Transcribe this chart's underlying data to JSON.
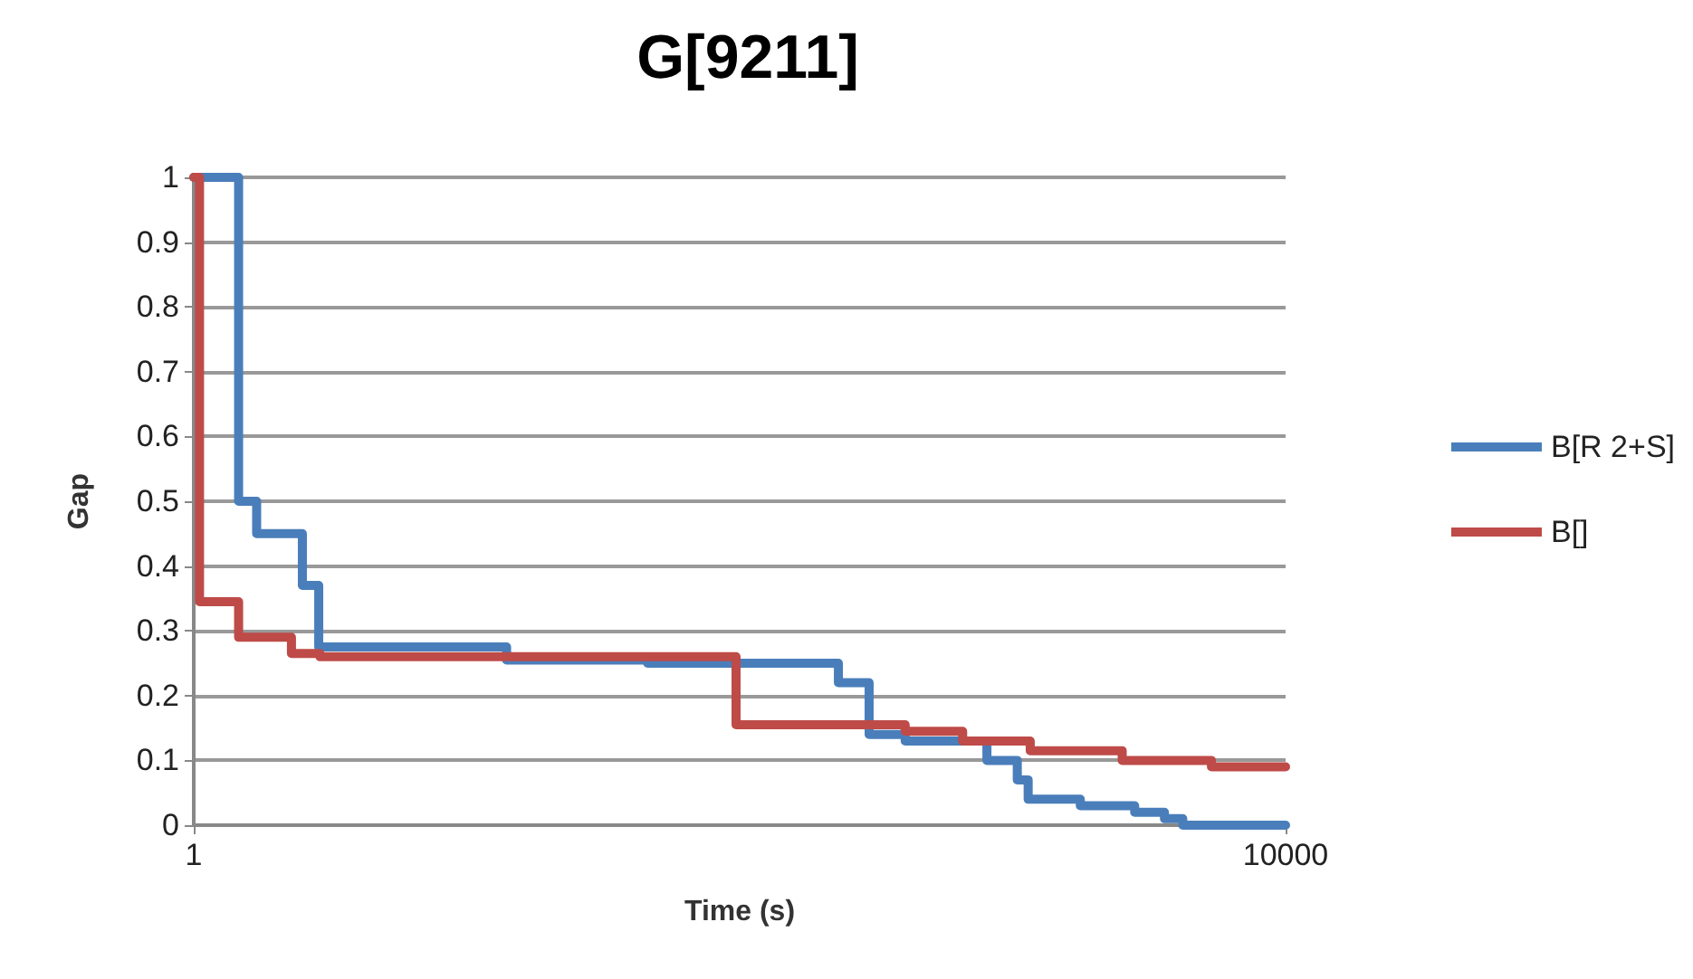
{
  "chart_data": {
    "type": "step",
    "title": "G[9211]",
    "xlabel": "Time (s)",
    "ylabel": "Gap",
    "log": "x",
    "xlim": [
      1,
      10000
    ],
    "xticks": [
      1,
      10000
    ],
    "ylim": [
      0,
      1
    ],
    "yticks": [
      0,
      0.1,
      0.2,
      0.3,
      0.4,
      0.5,
      0.6,
      0.7,
      0.8,
      0.9,
      1
    ],
    "grid": "y",
    "legend": "right",
    "marker": "none",
    "line_style": "solid",
    "series": [
      {
        "name": "B[R 2+S]",
        "color": "#4a7ebb",
        "x": [
          1,
          1.46,
          1.7,
          2.5,
          2.87,
          14,
          46,
          230,
          298,
          404,
          805,
          1040,
          1140,
          1770,
          2800,
          3600,
          4200,
          10000
        ],
        "values": [
          1,
          0.5,
          0.45,
          0.37,
          0.275,
          0.255,
          0.25,
          0.22,
          0.14,
          0.13,
          0.1,
          0.07,
          0.04,
          0.03,
          0.02,
          0.01,
          0,
          0
        ]
      },
      {
        "name": "B[]",
        "color": "#be4b48",
        "x": [
          1,
          1.05,
          1.46,
          2.28,
          2.9,
          97,
          404,
          656,
          1160,
          2520,
          5350,
          10000
        ],
        "values": [
          1,
          0.345,
          0.29,
          0.265,
          0.26,
          0.155,
          0.145,
          0.13,
          0.115,
          0.1,
          0.09,
          0.09
        ]
      }
    ]
  }
}
